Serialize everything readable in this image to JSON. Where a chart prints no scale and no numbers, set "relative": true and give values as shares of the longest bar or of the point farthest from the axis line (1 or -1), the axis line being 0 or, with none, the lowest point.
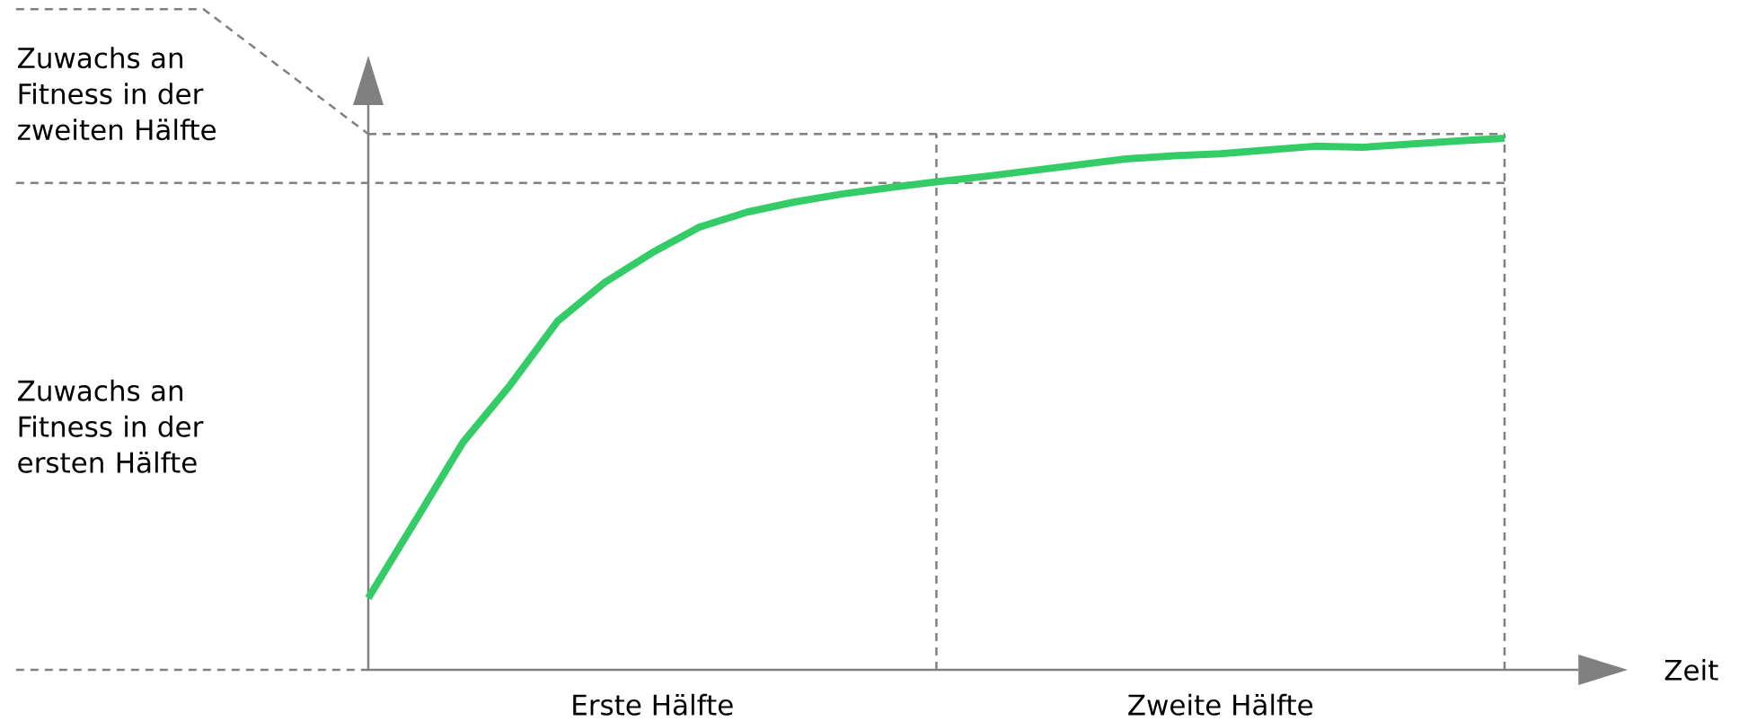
{
  "chart_data": {
    "type": "line",
    "relative": true,
    "xlabel": "Zeit",
    "color": "#33cc66",
    "line_style": "solid",
    "categories": [
      null,
      null,
      null,
      null,
      null,
      null,
      null,
      null,
      null,
      null,
      null,
      null,
      null,
      null,
      null,
      null,
      null,
      null,
      null,
      null,
      null,
      null,
      null,
      null,
      null
    ],
    "values": [
      0.135,
      0.281,
      0.428,
      0.536,
      0.656,
      0.729,
      0.785,
      0.833,
      0.861,
      0.88,
      0.895,
      0.907,
      0.918,
      0.928,
      0.939,
      0.95,
      0.961,
      0.967,
      0.971,
      0.978,
      0.985,
      0.983,
      0.989,
      0.995,
      1.0
    ],
    "ref_lines": [
      {
        "axis": "y",
        "value": 0.916,
        "color": "#808080",
        "line_style": "dashed"
      },
      {
        "axis": "y",
        "value": 1.008,
        "color": "#808080",
        "line_style": "dashed"
      }
    ],
    "annotations": [
      "Erste Hälfte",
      "Zweite Hälfte",
      "Zuwachs an Fitness in der ersten Hälfte",
      "Zuwachs an Fitness in der zweiten Hälfte"
    ]
  }
}
